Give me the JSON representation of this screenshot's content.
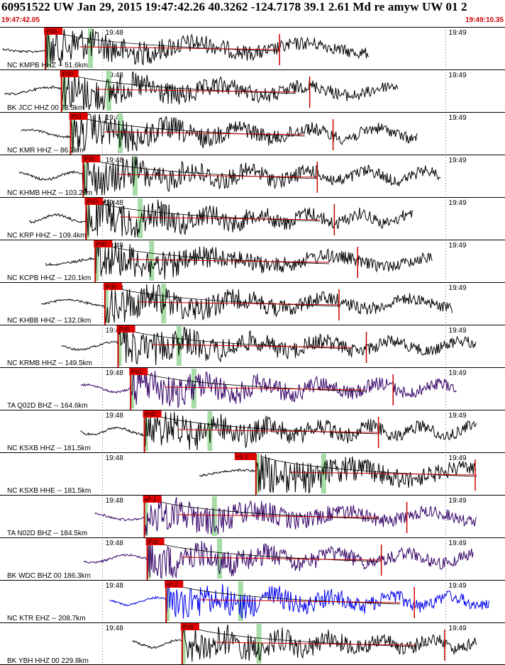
{
  "header": {
    "title": "60951522 UW Jan 29, 2015 19:47:42.26   40.3262 -124.7178 39.1 2.61 Md re amyw UW 01   2",
    "start_time": "19:47:42.05",
    "end_time": "19:49:10.35"
  },
  "colors": {
    "pick_box": "#e00000",
    "pick_line": "#cc0000",
    "green_bar": "#a6dca6",
    "coda_curve": "#000000",
    "ticks": "#000000",
    "trace_black": "#000000",
    "trace_purple": "#330066",
    "trace_blue": "#0000ee",
    "separator": "#000000"
  },
  "chart_data": {
    "type": "line",
    "title": "60951522 UW Jan 29, 2015 19:47:42.26   40.3262 -124.7178 39.1 2.61 Md re amyw UW 01   2",
    "x_range": [
      "19:47:42.05",
      "19:49:10.35"
    ],
    "minute_labels": [
      "19:48",
      "19:49"
    ],
    "series": [
      {
        "name": "NC KMPB HHZ -- 51.6km",
        "pick": "iPd0",
        "pick_time": "19:47:50.0",
        "color": "trace_black",
        "extra_picks": []
      },
      {
        "name": "BK JCC HHZ 00 73.3km",
        "pick": "iPd0",
        "pick_time": "19:47:52.8",
        "color": "trace_black",
        "extra_picks": []
      },
      {
        "name": "NC KMR HHZ -- 86.7km",
        "pick": "iPd1",
        "pick_time": "19:47:54.4",
        "color": "trace_black",
        "extra_picks": []
      },
      {
        "name": "NC KHMB HHZ -- 103.2km",
        "pick": "iPd0",
        "pick_time": "19:47:56.6",
        "color": "trace_black",
        "extra_picks": []
      },
      {
        "name": "NC KRP HHZ -- 109.4km",
        "pick": "iPd0",
        "pick_time": "19:47:57.1",
        "color": "trace_black",
        "extra_picks": []
      },
      {
        "name": "NC KCPB HHZ -- 120.1km",
        "pick": "iPd0",
        "pick_time": "19:47:58.7",
        "color": "trace_black",
        "extra_picks": []
      },
      {
        "name": "NC KHBB HHZ -- 132.0km",
        "pick": "iPd0",
        "pick_time": "19:48:00.4",
        "color": "trace_black",
        "extra_picks": []
      },
      {
        "name": "NC KRMB HHZ -- 149.5km",
        "pick": "iPd0",
        "pick_time": "19:48:02.7",
        "color": "trace_black",
        "extra_picks": []
      },
      {
        "name": "TA Q02D BHZ -- 164.6km",
        "pick": "iPd1",
        "pick_time": "19:48:04.9",
        "color": "trace_purple",
        "extra_picks": []
      },
      {
        "name": "NC KSXB HHZ -- 181.5km",
        "pick": "iPd0",
        "pick_time": "19:48:07.3",
        "color": "trace_black",
        "extra_picks": []
      },
      {
        "name": "NC KSXB HHE -- 181.5km",
        "pick": "eS 1",
        "pick_time": "19:48:26.8",
        "color": "trace_black",
        "extra_picks": []
      },
      {
        "name": "TA N02D BHZ -- 184.5km",
        "pick": "eP 2",
        "pick_time": "19:48:07.3",
        "color": "trace_purple",
        "extra_picks": []
      },
      {
        "name": "BK WDC BHZ 00 186.3km",
        "pick": "iPd1",
        "pick_time": "19:48:07.8",
        "color": "trace_purple",
        "extra_picks": []
      },
      {
        "name": "NC KTR EHZ -- 208.7km",
        "pick": "eP 2",
        "pick_time": "19:48:11.1",
        "color": "trace_blue",
        "extra_picks": []
      },
      {
        "name": "BK YBH HHZ 00 229.8km",
        "pick": "iPd0",
        "pick_time": "19:48:13.9",
        "color": "trace_black",
        "extra_picks": []
      }
    ]
  }
}
